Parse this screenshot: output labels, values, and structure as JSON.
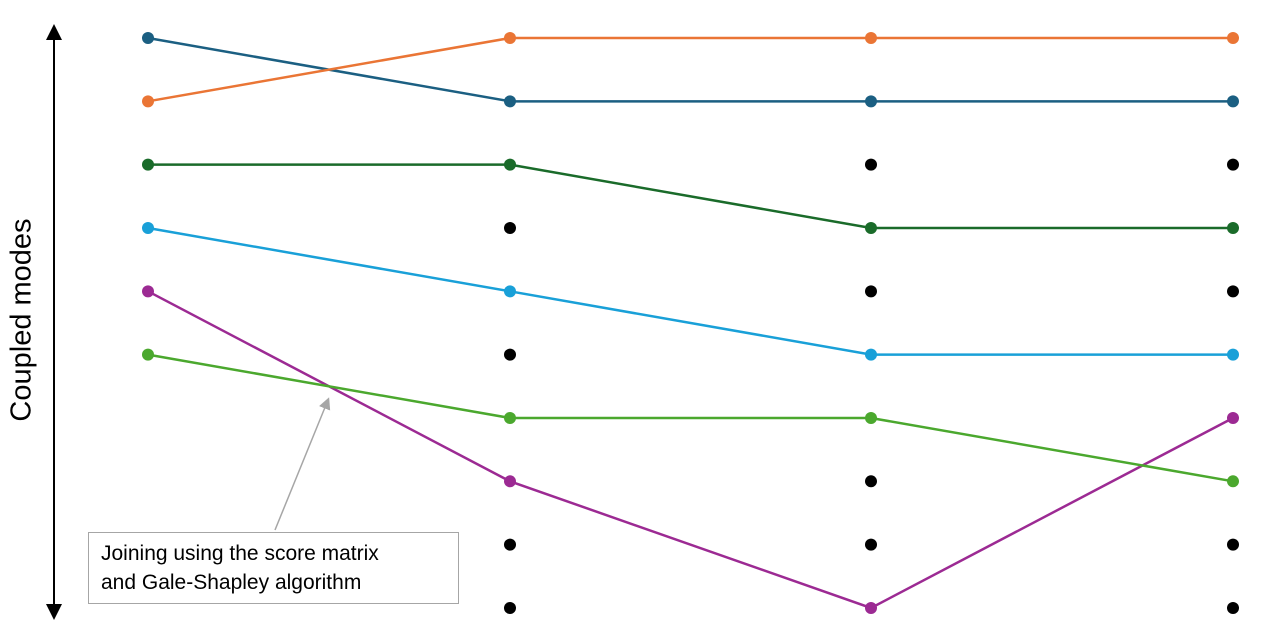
{
  "axis_label": "Coupled modes",
  "annotation": {
    "line1": "Joining using the score matrix",
    "line2": "and Gale-Shapley algorithm"
  },
  "columns": 4,
  "rows": 10,
  "unassigned_color": "#000000",
  "tracks": [
    {
      "color": "#1b5f82",
      "rows": [
        0,
        1,
        1,
        1
      ]
    },
    {
      "color": "#ea7535",
      "rows": [
        1,
        0,
        0,
        0
      ]
    },
    {
      "color": "#1a6b2a",
      "rows": [
        2,
        2,
        3,
        3
      ]
    },
    {
      "color": "#19a0d8",
      "rows": [
        3,
        4,
        5,
        5
      ]
    },
    {
      "color": "#9c2a93",
      "rows": [
        4,
        7,
        9,
        6
      ]
    },
    {
      "color": "#4ba82e",
      "rows": [
        5,
        6,
        6,
        7
      ]
    }
  ],
  "column_row_counts": [
    6,
    10,
    10,
    10
  ]
}
